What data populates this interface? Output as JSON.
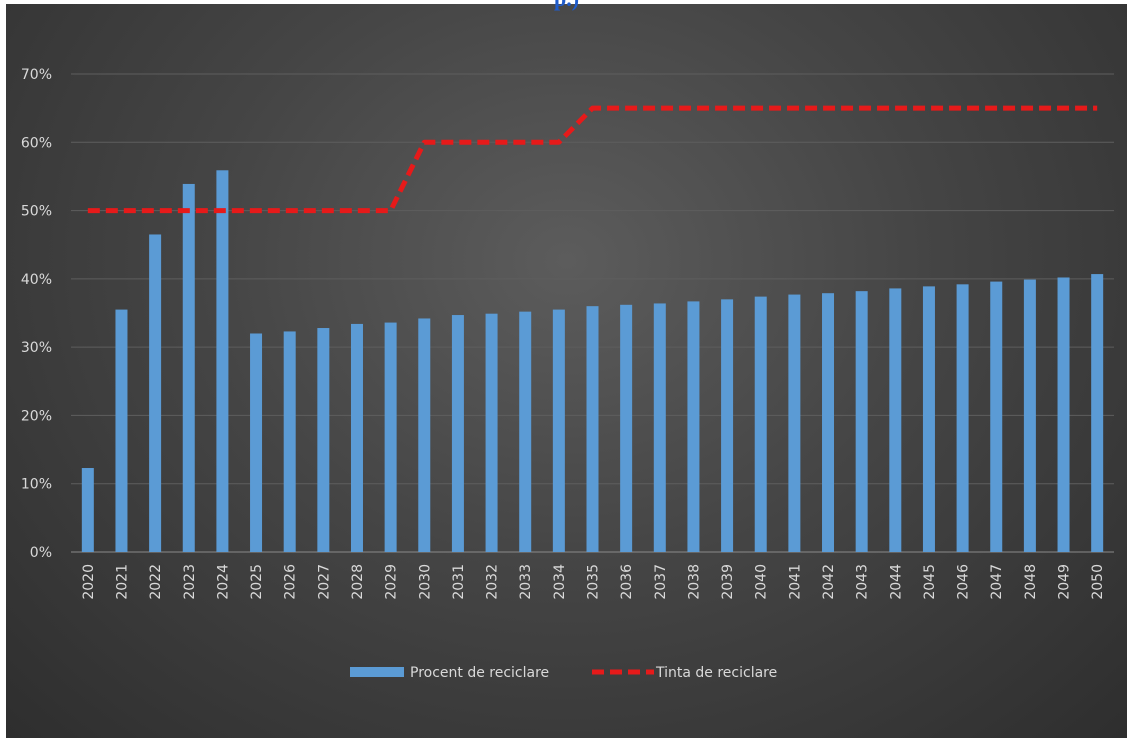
{
  "chart_data": {
    "type": "bar",
    "title": "",
    "xlabel": "",
    "ylabel": "",
    "ylim": [
      0,
      0.7
    ],
    "y_ticks": [
      0,
      0.1,
      0.2,
      0.3,
      0.4,
      0.5,
      0.6,
      0.7
    ],
    "y_tick_labels": [
      "0%",
      "10%",
      "20%",
      "30%",
      "40%",
      "50%",
      "60%",
      "70%"
    ],
    "grid": true,
    "legend_position": "bottom",
    "categories": [
      "2020",
      "2021",
      "2022",
      "2023",
      "2024",
      "2025",
      "2026",
      "2027",
      "2028",
      "2029",
      "2030",
      "2031",
      "2032",
      "2033",
      "2034",
      "2035",
      "2036",
      "2037",
      "2038",
      "2039",
      "2040",
      "2041",
      "2042",
      "2043",
      "2044",
      "2045",
      "2046",
      "2047",
      "2048",
      "2049",
      "2050"
    ],
    "series": [
      {
        "name": "Procent de reciclare",
        "type": "bar",
        "color": "#5b9bd5",
        "values": [
          0.123,
          0.355,
          0.465,
          0.539,
          0.559,
          0.32,
          0.323,
          0.328,
          0.334,
          0.336,
          0.342,
          0.347,
          0.349,
          0.352,
          0.355,
          0.36,
          0.362,
          0.364,
          0.367,
          0.37,
          0.374,
          0.377,
          0.379,
          0.382,
          0.386,
          0.389,
          0.392,
          0.396,
          0.399,
          0.402,
          0.407
        ]
      },
      {
        "name": "Tinta de reciclare",
        "type": "line",
        "style": "dashed",
        "color": "#e61a1a",
        "values": [
          0.5,
          0.5,
          0.5,
          0.5,
          0.5,
          0.5,
          0.5,
          0.5,
          0.5,
          0.5,
          0.6,
          0.6,
          0.6,
          0.6,
          0.6,
          0.65,
          0.65,
          0.65,
          0.65,
          0.65,
          0.65,
          0.65,
          0.65,
          0.65,
          0.65,
          0.65,
          0.65,
          0.65,
          0.65,
          0.65,
          0.65
        ]
      }
    ]
  },
  "page": {
    "top_fragment": "p.)"
  }
}
